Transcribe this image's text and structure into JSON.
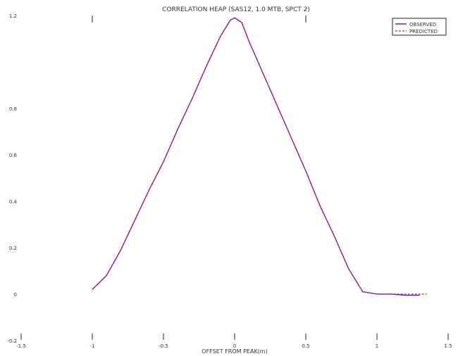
{
  "chart_data": {
    "type": "line",
    "title": "CORRELATION HEAP (SAS12, 1.0 MTB, SPCT 2)",
    "xlabel": "OFFSET FROM PEAK(m)",
    "ylabel": "",
    "xlim": [
      -1.5,
      1.5
    ],
    "ylim": [
      -0.2,
      1.2
    ],
    "x_ticks": [
      -1.5,
      -1,
      -0.5,
      0,
      0.5,
      1,
      1.5
    ],
    "x_tick_labels": [
      "-1.5",
      "-1",
      "-0.5",
      "0",
      "0.5",
      "1",
      "1.5"
    ],
    "y_ticks": [
      -0.2,
      0,
      0.2,
      0.4,
      0.6,
      0.8,
      1.2
    ],
    "y_tick_labels": [
      "-0.2",
      "0",
      "0.2",
      "0.4",
      "0.6",
      "0.8",
      "1.2"
    ],
    "top_ticks": [
      -1,
      0.5
    ],
    "grid": false,
    "legend": {
      "position": "top-right",
      "entries": [
        "OBSERVED",
        "PREDICTED"
      ]
    },
    "series": [
      {
        "name": "OBSERVED",
        "color": "#1a1ad6",
        "style": "solid",
        "x": [
          -1.0,
          -0.9,
          -0.8,
          -0.7,
          -0.6,
          -0.5,
          -0.4,
          -0.3,
          -0.2,
          -0.1,
          -0.03,
          0.0,
          0.05,
          0.1,
          0.2,
          0.3,
          0.4,
          0.5,
          0.6,
          0.7,
          0.8,
          0.9,
          1.0,
          1.1,
          1.2,
          1.3
        ],
        "y": [
          0.02,
          0.08,
          0.19,
          0.32,
          0.45,
          0.57,
          0.71,
          0.84,
          0.98,
          1.11,
          1.18,
          1.19,
          1.17,
          1.09,
          0.95,
          0.81,
          0.67,
          0.53,
          0.38,
          0.25,
          0.11,
          0.01,
          0.0,
          0.0,
          -0.005,
          -0.005
        ]
      },
      {
        "name": "PREDICTED",
        "color": "#e02020",
        "style": "dashed",
        "x": [
          -1.0,
          -0.9,
          -0.8,
          -0.7,
          -0.6,
          -0.5,
          -0.4,
          -0.3,
          -0.2,
          -0.1,
          -0.03,
          0.0,
          0.05,
          0.1,
          0.2,
          0.3,
          0.4,
          0.5,
          0.6,
          0.7,
          0.8,
          0.9,
          1.0,
          1.1,
          1.2,
          1.35
        ],
        "y": [
          0.02,
          0.08,
          0.19,
          0.32,
          0.45,
          0.57,
          0.71,
          0.84,
          0.98,
          1.11,
          1.18,
          1.19,
          1.17,
          1.09,
          0.95,
          0.81,
          0.67,
          0.53,
          0.38,
          0.25,
          0.11,
          0.01,
          0.0,
          0.0,
          0.0,
          0.0
        ]
      }
    ]
  }
}
